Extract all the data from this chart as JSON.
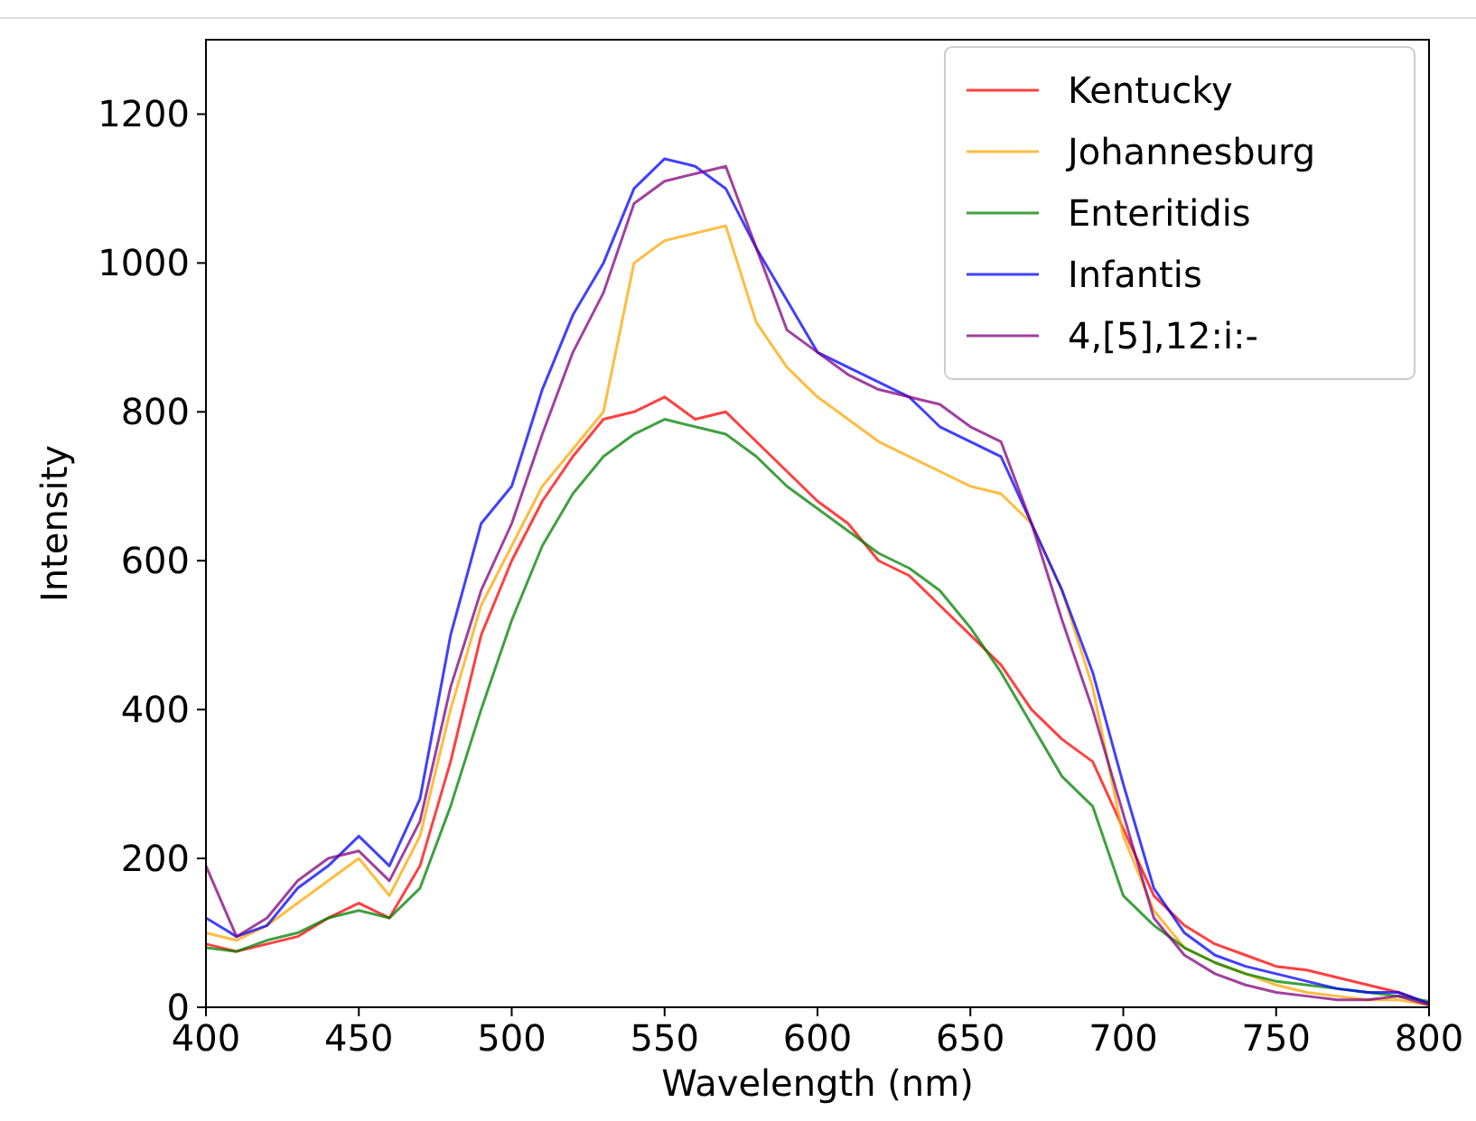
{
  "chart_data": {
    "type": "line",
    "xlabel": "Wavelength (nm)",
    "ylabel": "Intensity",
    "x": [
      400,
      410,
      420,
      430,
      440,
      450,
      460,
      470,
      480,
      490,
      500,
      510,
      520,
      530,
      540,
      550,
      560,
      570,
      580,
      590,
      600,
      610,
      620,
      630,
      640,
      650,
      660,
      670,
      680,
      690,
      700,
      710,
      720,
      730,
      740,
      750,
      760,
      770,
      780,
      790,
      800
    ],
    "series": [
      {
        "name": "Kentucky",
        "color": "#ff0000",
        "values": [
          85,
          75,
          85,
          95,
          120,
          140,
          120,
          190,
          330,
          500,
          600,
          680,
          740,
          790,
          800,
          820,
          790,
          800,
          760,
          720,
          680,
          650,
          600,
          580,
          540,
          500,
          460,
          400,
          360,
          330,
          240,
          150,
          110,
          85,
          70,
          55,
          50,
          40,
          30,
          20,
          5
        ]
      },
      {
        "name": "Johannesburg",
        "color": "#ffa500",
        "values": [
          100,
          90,
          110,
          140,
          170,
          200,
          150,
          230,
          400,
          540,
          620,
          700,
          750,
          800,
          1000,
          1030,
          1040,
          1050,
          920,
          860,
          820,
          790,
          760,
          740,
          720,
          700,
          690,
          650,
          560,
          430,
          230,
          130,
          80,
          60,
          45,
          30,
          20,
          15,
          10,
          10,
          3
        ]
      },
      {
        "name": "Enteritidis",
        "color": "#008000",
        "values": [
          80,
          75,
          90,
          100,
          120,
          130,
          120,
          160,
          270,
          400,
          520,
          620,
          690,
          740,
          770,
          790,
          780,
          770,
          740,
          700,
          670,
          640,
          610,
          590,
          560,
          510,
          450,
          380,
          310,
          270,
          150,
          110,
          80,
          60,
          45,
          35,
          30,
          25,
          20,
          15,
          8
        ]
      },
      {
        "name": "Infantis",
        "color": "#0000ff",
        "values": [
          120,
          95,
          110,
          160,
          190,
          230,
          190,
          280,
          500,
          650,
          700,
          830,
          930,
          1000,
          1100,
          1140,
          1130,
          1100,
          1020,
          950,
          880,
          860,
          840,
          820,
          780,
          760,
          740,
          650,
          560,
          450,
          300,
          160,
          100,
          70,
          55,
          45,
          35,
          25,
          20,
          20,
          5
        ]
      },
      {
        "name": "4,[5],12:i:-",
        "color": "#800080",
        "values": [
          190,
          95,
          120,
          170,
          200,
          210,
          170,
          250,
          430,
          560,
          650,
          770,
          880,
          960,
          1080,
          1110,
          1120,
          1130,
          1020,
          910,
          880,
          850,
          830,
          820,
          810,
          780,
          760,
          650,
          520,
          400,
          260,
          120,
          70,
          45,
          30,
          20,
          15,
          10,
          10,
          15,
          3
        ]
      }
    ],
    "xlim": [
      400,
      800
    ],
    "xticks": [
      400,
      450,
      500,
      550,
      600,
      650,
      700,
      750,
      800
    ],
    "ylim": [
      0,
      1300
    ],
    "yticks": [
      0,
      200,
      400,
      600,
      800,
      1000,
      1200
    ],
    "legend": "top right",
    "grid": false
  }
}
